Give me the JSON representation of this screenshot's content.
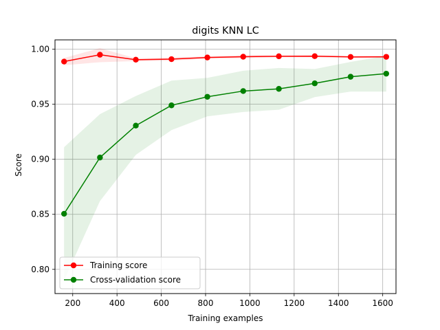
{
  "chart_data": {
    "type": "line",
    "title": "digits KNN LC",
    "xlabel": "Training examples",
    "ylabel": "Score",
    "xlim": [
      120,
      1660
    ],
    "ylim": [
      0.778,
      1.0085
    ],
    "xticks": [
      200,
      400,
      600,
      800,
      1000,
      1200,
      1400,
      1600
    ],
    "xtick_labels": [
      "200",
      "400",
      "600",
      "800",
      "1000",
      "1200",
      "1400",
      "1600"
    ],
    "yticks": [
      0.8,
      0.85,
      0.9,
      0.95,
      1.0
    ],
    "ytick_labels": [
      "0.80",
      "0.85",
      "0.90",
      "0.95",
      "1.00"
    ],
    "grid": true,
    "legend_position": "lower-left",
    "x": [
      161,
      323,
      485,
      646,
      808,
      970,
      1131,
      1293,
      1455,
      1616
    ],
    "series": [
      {
        "name": "Training score",
        "color": "#ff0000",
        "values": [
          0.9888,
          0.995,
          0.9905,
          0.991,
          0.9925,
          0.9932,
          0.9936,
          0.9937,
          0.993,
          0.9931
        ],
        "band_lower": [
          0.9855,
          0.9882,
          0.9892,
          0.9895,
          0.9914,
          0.9918,
          0.9928,
          0.9928,
          0.9922,
          0.9922
        ],
        "band_upper": [
          0.992,
          1.001,
          0.9918,
          0.9925,
          0.9936,
          0.9946,
          0.9944,
          0.9946,
          0.9938,
          0.994
        ]
      },
      {
        "name": "Cross-validation score",
        "color": "#008000",
        "values": [
          0.8505,
          0.9016,
          0.9306,
          0.949,
          0.9568,
          0.962,
          0.964,
          0.969,
          0.975,
          0.9778
        ],
        "band_lower": [
          0.79,
          0.862,
          0.904,
          0.9265,
          0.939,
          0.943,
          0.945,
          0.9565,
          0.9615,
          0.9615
        ],
        "band_upper": [
          0.911,
          0.941,
          0.9575,
          0.9715,
          0.974,
          0.9805,
          0.983,
          0.982,
          0.9885,
          0.994
        ]
      }
    ]
  }
}
